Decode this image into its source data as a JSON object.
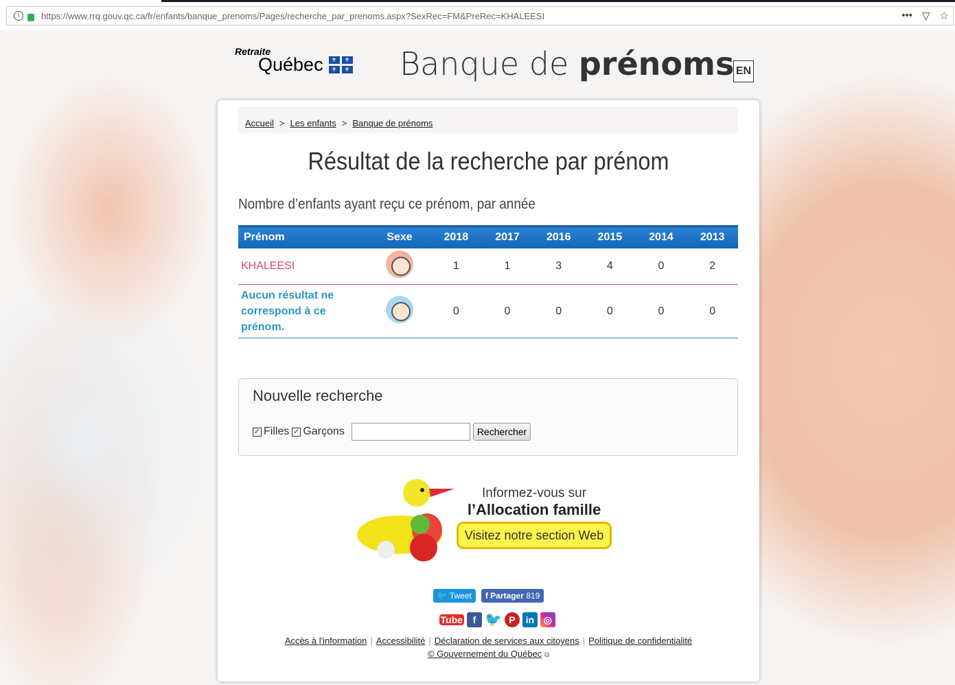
{
  "browser": {
    "url": "https://www.rrq.gouv.qc.ca/fr/enfants/banque_prenoms/Pages/recherche_par_prenoms.aspx?SexRec=FM&PreRec=KHALEESI",
    "menu_icon": "•••"
  },
  "header": {
    "logo_top": "Retraite",
    "logo_bottom": "Québec",
    "title_light": "Banque de ",
    "title_bold": "prénoms",
    "lang_button": "EN"
  },
  "breadcrumb": [
    {
      "label": "Accueil"
    },
    {
      "label": "Les enfants"
    },
    {
      "label": "Banque de prénoms"
    }
  ],
  "breadcrumb_sep": ">",
  "page_title": "Résultat de la recherche par prénom",
  "subtitle": "Nombre d’enfants ayant reçu ce prénom, par année",
  "table": {
    "headers": [
      "Prénom",
      "Sexe",
      "2018",
      "2017",
      "2016",
      "2015",
      "2014",
      "2013"
    ],
    "rows": [
      {
        "name": "KHALEESI",
        "sex": "girl",
        "values": [
          "1",
          "1",
          "3",
          "4",
          "0",
          "2"
        ],
        "color": "#d7457e"
      },
      {
        "name": "Aucun résultat ne correspond à ce prénom.",
        "sex": "boy",
        "values": [
          "0",
          "0",
          "0",
          "0",
          "0",
          "0"
        ],
        "color": "#2a97c3"
      }
    ]
  },
  "search": {
    "title": "Nouvelle recherche",
    "girls_label": "Filles",
    "girls_checked": true,
    "boys_label": "Garçons",
    "boys_checked": true,
    "input_value": "",
    "button": "Rechercher"
  },
  "promo": {
    "line1": "Informez-vous sur",
    "line2": "l’Allocation famille",
    "button": "Visitez notre section Web"
  },
  "share": {
    "tweet": "Tweet",
    "facebook": "Partager",
    "facebook_count": "819"
  },
  "social": {
    "youtube_a": "You",
    "youtube_b": "Tube",
    "facebook": "f",
    "twitter": "t",
    "pinterest": "P",
    "linkedin": "in",
    "instagram": "◎"
  },
  "footer": {
    "links": [
      "Accès à l'information",
      "Accessibilité",
      "Déclaration de services aux citoyens",
      "Politique de confidentialité"
    ],
    "copyright": "© Gouvernement du Québec"
  }
}
